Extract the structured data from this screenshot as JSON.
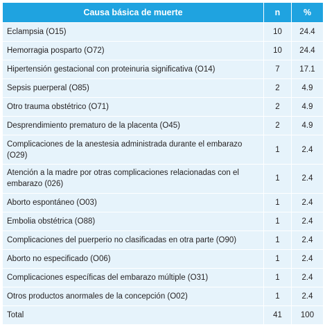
{
  "table": {
    "headers": {
      "cause": "Causa básica de muerte",
      "n": "n",
      "pct": "%"
    },
    "rows": [
      {
        "cause": "Eclampsia (O15)",
        "n": "10",
        "pct": "24.4"
      },
      {
        "cause": "Hemorragia posparto (O72)",
        "n": "10",
        "pct": "24.4"
      },
      {
        "cause": "Hipertensión gestacional con proteinuria significativa (O14)",
        "n": "7",
        "pct": "17.1"
      },
      {
        "cause": "Sepsis puerperal (O85)",
        "n": "2",
        "pct": "4.9"
      },
      {
        "cause": "Otro trauma obstétrico (O71)",
        "n": "2",
        "pct": "4.9"
      },
      {
        "cause": "Desprendimiento prematuro de la placenta (O45)",
        "n": "2",
        "pct": "4.9"
      },
      {
        "cause": "Complicaciones de la anestesia administrada durante el embarazo (O29)",
        "n": "1",
        "pct": "2.4"
      },
      {
        "cause": "Atención a la madre por otras complicaciones relacionadas con el embarazo (026)",
        "n": "1",
        "pct": "2.4"
      },
      {
        "cause": "Aborto espontáneo (O03)",
        "n": "1",
        "pct": "2.4"
      },
      {
        "cause": "Embolia obstétrica (O88)",
        "n": "1",
        "pct": "2.4"
      },
      {
        "cause": "Complicaciones del puerperio no clasificadas en otra parte (O90)",
        "n": "1",
        "pct": "2.4"
      },
      {
        "cause": "Aborto no especificado (O06)",
        "n": "1",
        "pct": "2.4"
      },
      {
        "cause": "Complicaciones específicas del embarazo múltiple (O31)",
        "n": "1",
        "pct": "2.4"
      },
      {
        "cause": "Otros productos anormales de la concepción (O02)",
        "n": "1",
        "pct": "2.4"
      }
    ],
    "total": {
      "label": "Total",
      "n": "41",
      "pct": "100"
    }
  }
}
